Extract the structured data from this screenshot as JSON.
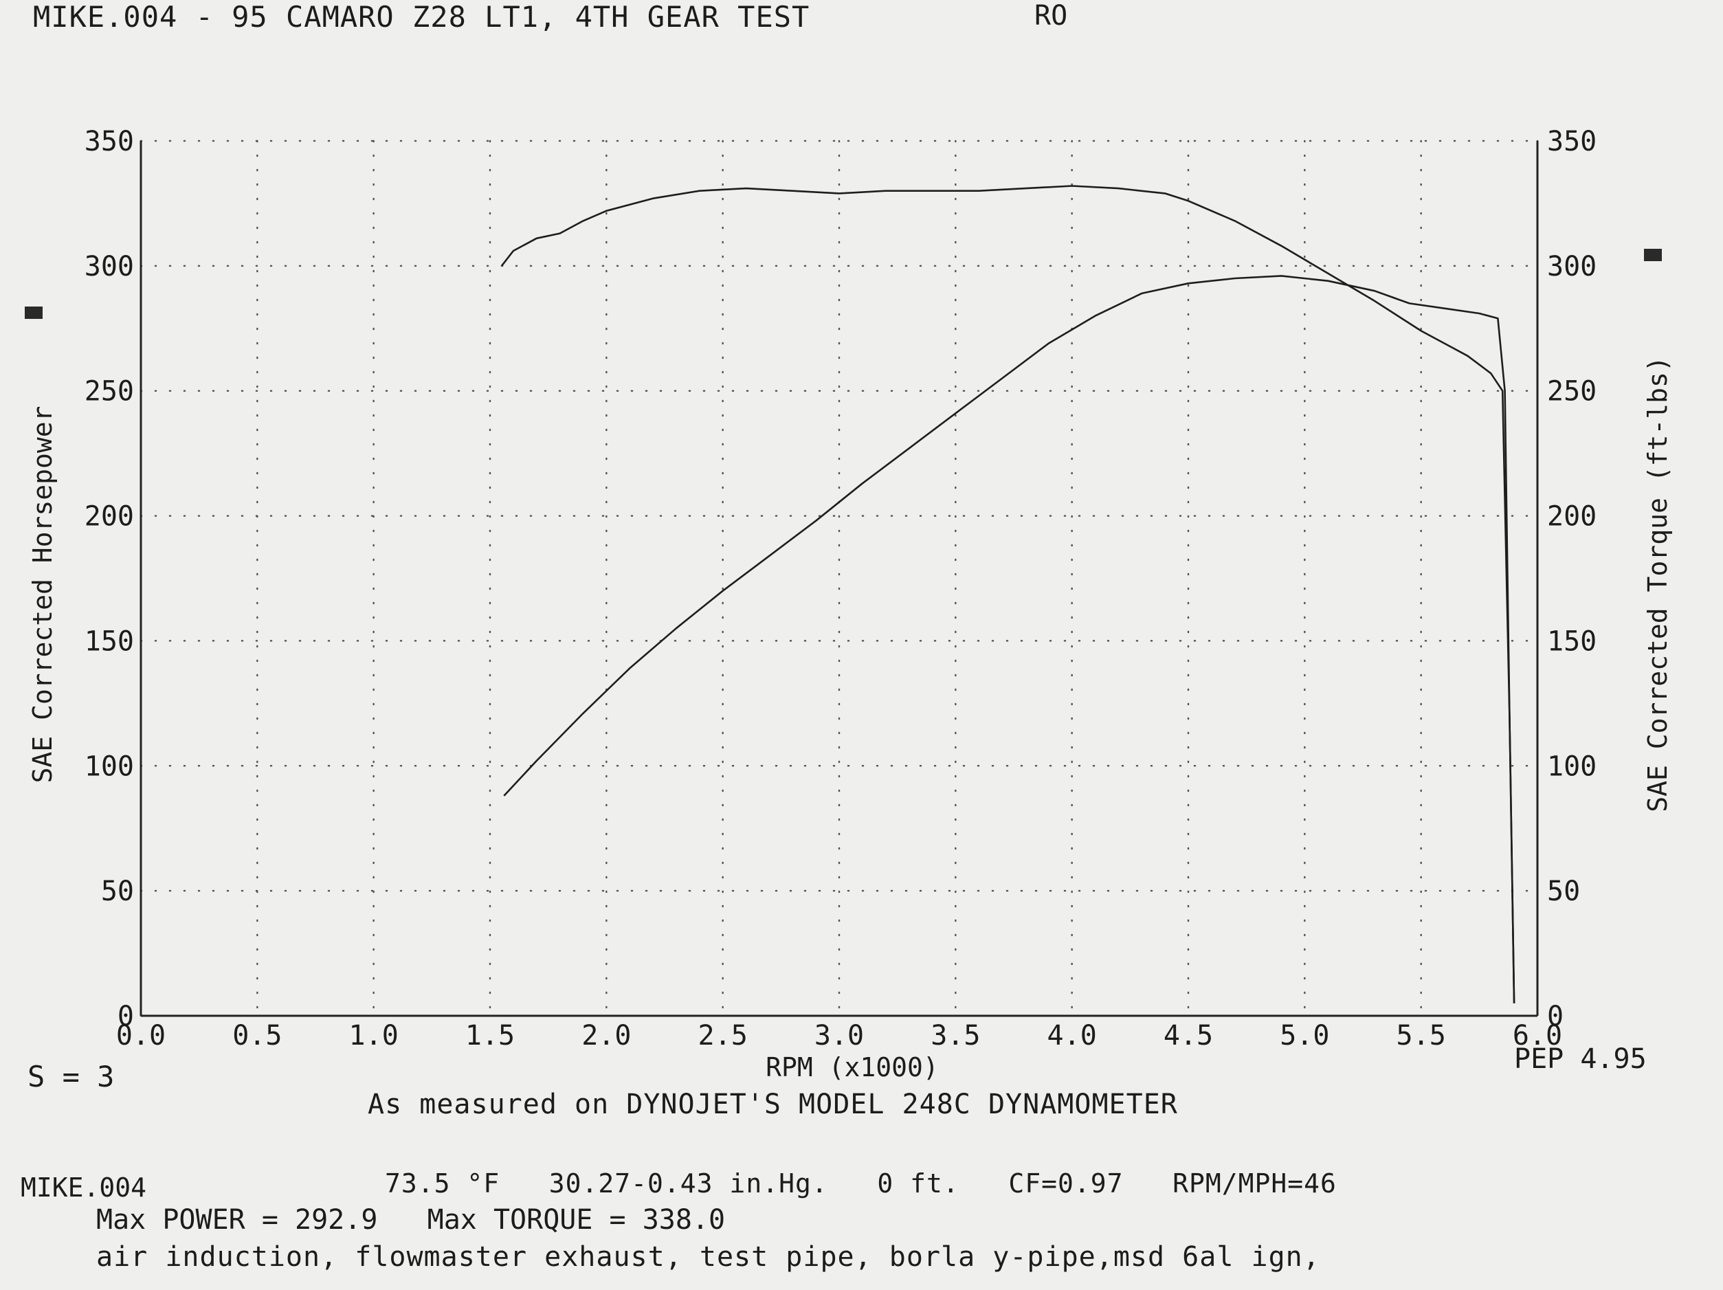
{
  "header": {
    "title": "MIKE.004 - 95 CAMARO Z28 LT1, 4TH GEAR TEST",
    "code": "RO"
  },
  "chart_data": {
    "type": "line",
    "title": "MIKE.004 - 95 CAMARO Z28 LT1, 4TH GEAR TEST",
    "xlabel": "RPM (x1000)",
    "ylabel_left": "SAE Corrected Horsepower",
    "ylabel_right": "SAE Corrected Torque (ft-lbs)",
    "xlim": [
      0.0,
      6.0
    ],
    "ylim_left": [
      0,
      350
    ],
    "ylim_right": [
      0,
      350
    ],
    "x_ticks": [
      "0.0",
      "0.5",
      "1.0",
      "1.5",
      "2.0",
      "2.5",
      "3.0",
      "3.5",
      "4.0",
      "4.5",
      "5.0",
      "5.5",
      "6.0"
    ],
    "y_ticks_left": [
      "0",
      "50",
      "100",
      "150",
      "200",
      "250",
      "300",
      "350"
    ],
    "y_ticks_right": [
      "0",
      "50",
      "100",
      "150",
      "200",
      "250",
      "300",
      "350"
    ],
    "grid": true,
    "series": [
      {
        "axis": "left",
        "x": [
          1.56,
          1.7,
          1.9,
          2.1,
          2.3,
          2.5,
          2.7,
          2.9,
          3.1,
          3.3,
          3.5,
          3.7,
          3.9,
          4.1,
          4.3,
          4.5,
          4.7,
          4.9,
          5.1,
          5.3,
          5.45,
          5.6,
          5.75,
          5.83,
          5.86,
          5.88,
          5.9
        ],
        "y": [
          88,
          102,
          121,
          139,
          155,
          170,
          184,
          198,
          213,
          227,
          241,
          255,
          269,
          280,
          289,
          293,
          295,
          296,
          294,
          290,
          285,
          283,
          281,
          279,
          250,
          120,
          5
        ]
      },
      {
        "axis": "right",
        "x": [
          1.55,
          1.6,
          1.7,
          1.8,
          1.9,
          2.0,
          2.2,
          2.4,
          2.6,
          2.8,
          3.0,
          3.2,
          3.4,
          3.6,
          3.8,
          4.0,
          4.2,
          4.4,
          4.5,
          4.7,
          4.9,
          5.1,
          5.3,
          5.5,
          5.7,
          5.8,
          5.85,
          5.88,
          5.9
        ],
        "y": [
          300,
          306,
          311,
          313,
          318,
          322,
          327,
          330,
          331,
          330,
          329,
          330,
          330,
          330,
          331,
          332,
          331,
          329,
          326,
          318,
          308,
          297,
          286,
          274,
          264,
          257,
          250,
          120,
          5
        ]
      }
    ]
  },
  "smoothing": "S = 3",
  "pep": "PEP 4.95",
  "footer_note": "As measured on DYNOJET'S MODEL 248C DYNAMOMETER",
  "run_id": "MIKE.004",
  "conditions": "73.5 °F   30.27-0.43 in.Hg.   0 ft.   CF=0.97   RPM/MPH=46",
  "max_line": "Max POWER = 292.9   Max TORQUE = 338.0",
  "mods": "air induction, flowmaster exhaust, test pipe, borla y-pipe,msd 6al ign,"
}
